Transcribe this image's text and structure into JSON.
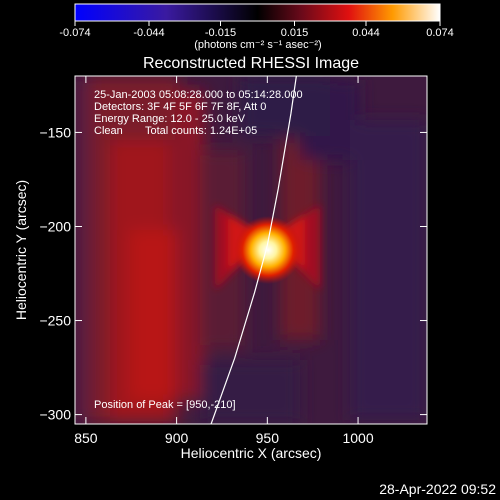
{
  "colorbar": {
    "ticks": [
      "-0.074",
      "-0.044",
      "-0.015",
      "0.015",
      "0.044",
      "0.074"
    ],
    "range": [
      -0.074,
      0.074
    ],
    "units": "(photons cm⁻² s⁻¹ asec⁻²)"
  },
  "chart_data": {
    "type": "heatmap",
    "title": "Reconstructed RHESSI Image",
    "xlabel": "Heliocentric X (arcsec)",
    "ylabel": "Heliocentric Y (arcsec)",
    "xlim": [
      844,
      1038
    ],
    "ylim": [
      -305,
      -120
    ],
    "xticks": [
      850,
      900,
      950,
      1000
    ],
    "yticks": [
      -150,
      -200,
      -250,
      -300
    ],
    "peak": {
      "x": 950,
      "y": -210,
      "flux": 0.074
    },
    "limb_curve": [
      [
        919,
        -305
      ],
      [
        932,
        -270
      ],
      [
        943,
        -235
      ],
      [
        950,
        -210
      ],
      [
        956,
        -180
      ],
      [
        963,
        -140
      ],
      [
        966,
        -120
      ]
    ],
    "annotations": {
      "time": "25-Jan-2003 05:08:28.000 to 05:14:28.000",
      "detectors": "Detectors: 3F 4F 5F 6F 7F 8F, Att 0",
      "energy": "Energy Range: 12.0 - 25.0 keV",
      "clean": "Clean",
      "counts": "Total counts: 1.24E+05",
      "peak_label": "Position of Peak = [950,-210]"
    }
  },
  "footer": {
    "timestamp": "28-Apr-2022 09:52"
  },
  "colors": {
    "accent": "#ffffff",
    "background": "#000000"
  }
}
